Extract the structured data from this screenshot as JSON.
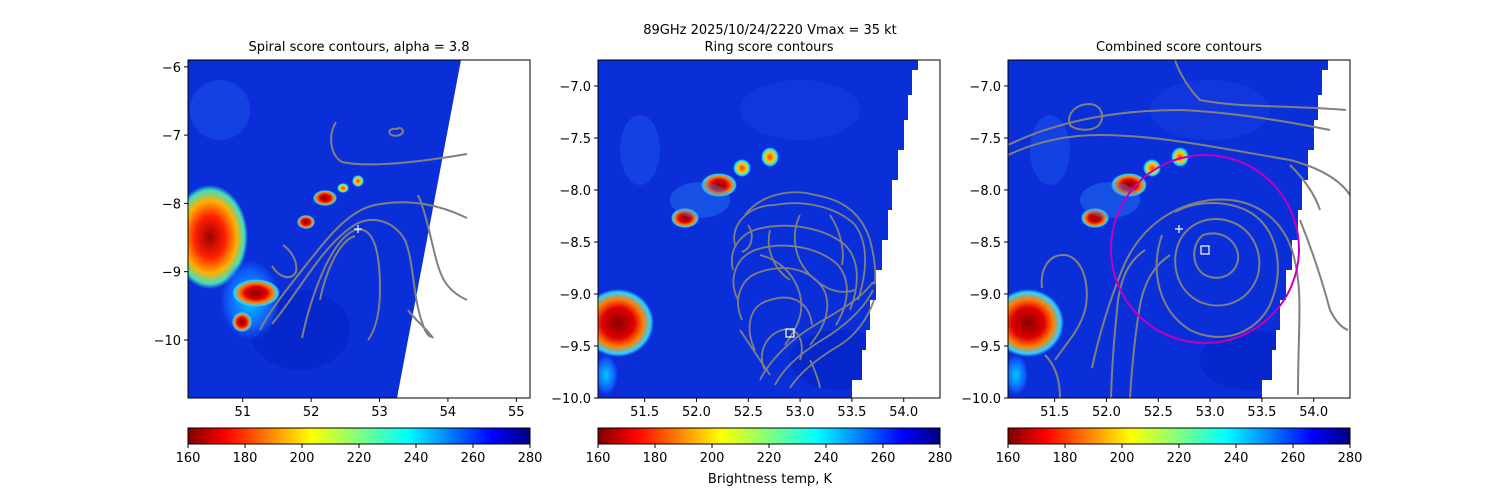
{
  "figure": {
    "suptitle": "89GHz  2025/10/24/2220    Vmax = 35 kt",
    "colorbar_label": "Brightness temp, K"
  },
  "colors": {
    "contour": "#808080",
    "ring": "#c000c0",
    "marker": "#ffffff",
    "background_field": "#0a2fd8"
  },
  "chart_data": [
    {
      "type": "heatmap",
      "title": "Spiral score contours, alpha =  3.8",
      "xlim": [
        50.2,
        55.2
      ],
      "ylim": [
        -10.85,
        -5.9
      ],
      "xticks": [
        "51",
        "52",
        "53",
        "54",
        "55"
      ],
      "yticks": [
        "−6",
        "−7",
        "−8",
        "−9",
        "−10"
      ],
      "colorbar": {
        "min": 160,
        "max": 280,
        "ticks": [
          "160",
          "180",
          "200",
          "220",
          "240",
          "260",
          "280"
        ],
        "colormap": "jet_r"
      },
      "overlays": [
        "spiral-score contours",
        "center-plus-marker"
      ],
      "center_plus": [
        52.7,
        -8.38
      ]
    },
    {
      "type": "heatmap",
      "title": "Ring score contours",
      "xlim": [
        51.05,
        54.35
      ],
      "ylim": [
        -10.0,
        -6.75
      ],
      "xticks": [
        "51.5",
        "52.0",
        "52.5",
        "53.0",
        "53.5",
        "54.0"
      ],
      "yticks": [
        "−7.0",
        "−7.5",
        "−8.0",
        "−8.5",
        "−9.0",
        "−9.5",
        "−10.0"
      ],
      "colorbar": {
        "min": 160,
        "max": 280,
        "ticks": [
          "160",
          "180",
          "200",
          "220",
          "240",
          "260",
          "280"
        ],
        "colormap": "jet_r"
      },
      "overlays": [
        "ring-score contours",
        "center-square-marker"
      ],
      "center_square": [
        52.9,
        -9.37
      ]
    },
    {
      "type": "heatmap",
      "title": "Combined score contours",
      "xlim": [
        51.05,
        54.35
      ],
      "ylim": [
        -10.0,
        -6.75
      ],
      "xticks": [
        "51.5",
        "52.0",
        "52.5",
        "53.0",
        "53.5",
        "54.0"
      ],
      "yticks": [
        "−7.0",
        "−7.5",
        "−8.0",
        "−8.5",
        "−9.0",
        "−9.5",
        "−10.0"
      ],
      "colorbar": {
        "min": 160,
        "max": 280,
        "ticks": [
          "160",
          "180",
          "200",
          "220",
          "240",
          "260",
          "280"
        ],
        "colormap": "jet_r"
      },
      "overlays": [
        "combined-score contours",
        "fit-circle",
        "center-plus-marker",
        "center-square-marker"
      ],
      "center_plus": [
        52.7,
        -8.38
      ],
      "center_square": [
        52.92,
        -8.58
      ]
    }
  ]
}
